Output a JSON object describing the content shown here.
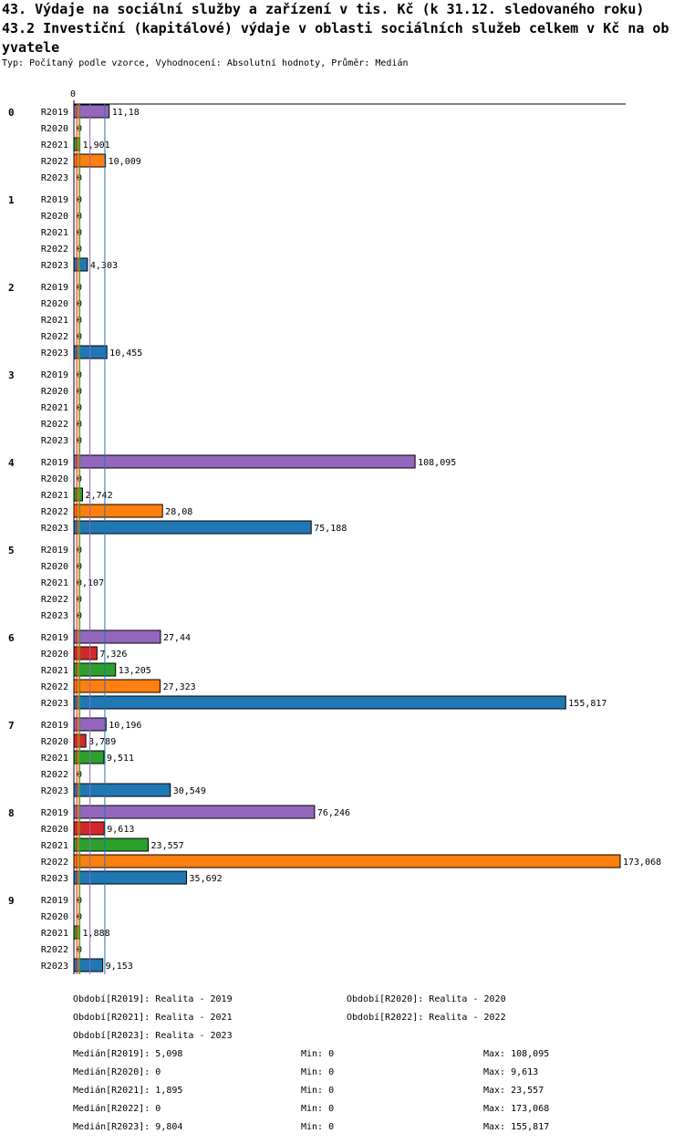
{
  "header": {
    "title_line1": "43. Výdaje na sociální služby a zařízení v tis. Kč (k 31.12. sledovaného roku)",
    "title_line2": "43.2 Investiční (kapitálové) výdaje v oblasti sociálních služeb celkem v Kč na ob",
    "title_line3": "yvatele",
    "subtitle": "Typ: Počítaný podle vzorce, Vyhodnocení: Absolutní hodnoty, Průměr: Medián"
  },
  "chart_data": {
    "type": "bar",
    "orientation": "horizontal",
    "x_tick_label": "0",
    "xlim": [
      0,
      173.068
    ],
    "categories": [
      "0",
      "1",
      "2",
      "3",
      "4",
      "5",
      "6",
      "7",
      "8",
      "9"
    ],
    "series": [
      {
        "name": "R2019",
        "color": "#9467bd",
        "values": [
          11.18,
          0,
          0,
          0,
          108.095,
          0,
          27.44,
          10.196,
          76.246,
          0
        ],
        "labels": [
          "11,18",
          "0",
          "0",
          "0",
          "108,095",
          "0",
          "27,44",
          "10,196",
          "76,246",
          "0"
        ]
      },
      {
        "name": "R2020",
        "color": "#d62728",
        "values": [
          0,
          0,
          0,
          0,
          0,
          0,
          7.326,
          3.789,
          9.613,
          0
        ],
        "labels": [
          "0",
          "0",
          "0",
          "0",
          "0",
          "0",
          "7,326",
          "3,789",
          "9,613",
          "0"
        ]
      },
      {
        "name": "R2021",
        "color": "#2ca02c",
        "values": [
          1.901,
          0,
          0,
          0,
          2.742,
          0.107,
          13.205,
          9.511,
          23.557,
          1.888
        ],
        "labels": [
          "1,901",
          "0",
          "0",
          "0",
          "2,742",
          "0,107",
          "13,205",
          "9,511",
          "23,557",
          "1,888"
        ]
      },
      {
        "name": "R2022",
        "color": "#ff7f0e",
        "values": [
          10.009,
          0,
          0,
          0,
          28.08,
          0,
          27.323,
          0,
          173.068,
          0
        ],
        "labels": [
          "10,009",
          "0",
          "0",
          "0",
          "28,08",
          "0",
          "27,323",
          "0",
          "173,068",
          "0"
        ]
      },
      {
        "name": "R2023",
        "color": "#1f77b4",
        "values": [
          0,
          4.303,
          10.455,
          0,
          75.188,
          0,
          155.817,
          30.549,
          35.692,
          9.153
        ],
        "labels": [
          "0",
          "4,303",
          "10,455",
          "0",
          "75,188",
          "0",
          "155,817",
          "30,549",
          "35,692",
          "9,153"
        ]
      }
    ],
    "median_lines": [
      {
        "series": "R2019",
        "value": 5.098,
        "color": "#9467bd"
      },
      {
        "series": "R2020",
        "value": 0,
        "color": "#d62728"
      },
      {
        "series": "R2021",
        "value": 1.895,
        "color": "#2ca02c"
      },
      {
        "series": "R2022",
        "value": 0,
        "color": "#ff7f0e"
      },
      {
        "series": "R2023",
        "value": 9.804,
        "color": "#1f77b4"
      }
    ]
  },
  "legend": [
    "Období[R2019]: Realita - 2019",
    "Období[R2020]: Realita - 2020",
    "Období[R2021]: Realita - 2021",
    "Období[R2022]: Realita - 2022",
    "Období[R2023]: Realita - 2023"
  ],
  "stats": [
    {
      "median": "Medián[R2019]: 5,098",
      "min": "Min: 0",
      "max": "Max: 108,095"
    },
    {
      "median": "Medián[R2020]: 0",
      "min": "Min: 0",
      "max": "Max: 9,613"
    },
    {
      "median": "Medián[R2021]: 1,895",
      "min": "Min: 0",
      "max": "Max: 23,557"
    },
    {
      "median": "Medián[R2022]: 0",
      "min": "Min: 0",
      "max": "Max: 173,068"
    },
    {
      "median": "Medián[R2023]: 9,804",
      "min": "Min: 0",
      "max": "Max: 155,817"
    }
  ]
}
